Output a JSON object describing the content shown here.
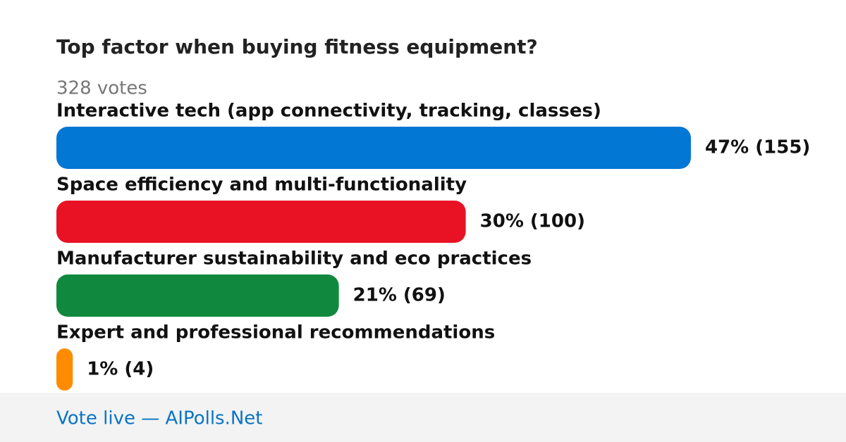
{
  "header": {
    "title": "Top factor when buying fitness equipment?",
    "votes_label": "328 votes"
  },
  "options": [
    {
      "label": "Interactive tech (app connectivity, tracking, classes)",
      "votes": 155,
      "value_label": "47% (155)",
      "color": "#0277d4"
    },
    {
      "label": "Space efficiency and multi-functionality",
      "votes": 100,
      "value_label": "30% (100)",
      "color": "#e81224"
    },
    {
      "label": "Manufacturer sustainability and eco practices",
      "votes": 69,
      "value_label": "21% (69)",
      "color": "#10893e"
    },
    {
      "label": "Expert and professional recommendations",
      "votes": 4,
      "value_label": "1% (4)",
      "color": "#ff8c00"
    }
  ],
  "footer": {
    "link": "Vote live — AIPolls.Net"
  }
}
